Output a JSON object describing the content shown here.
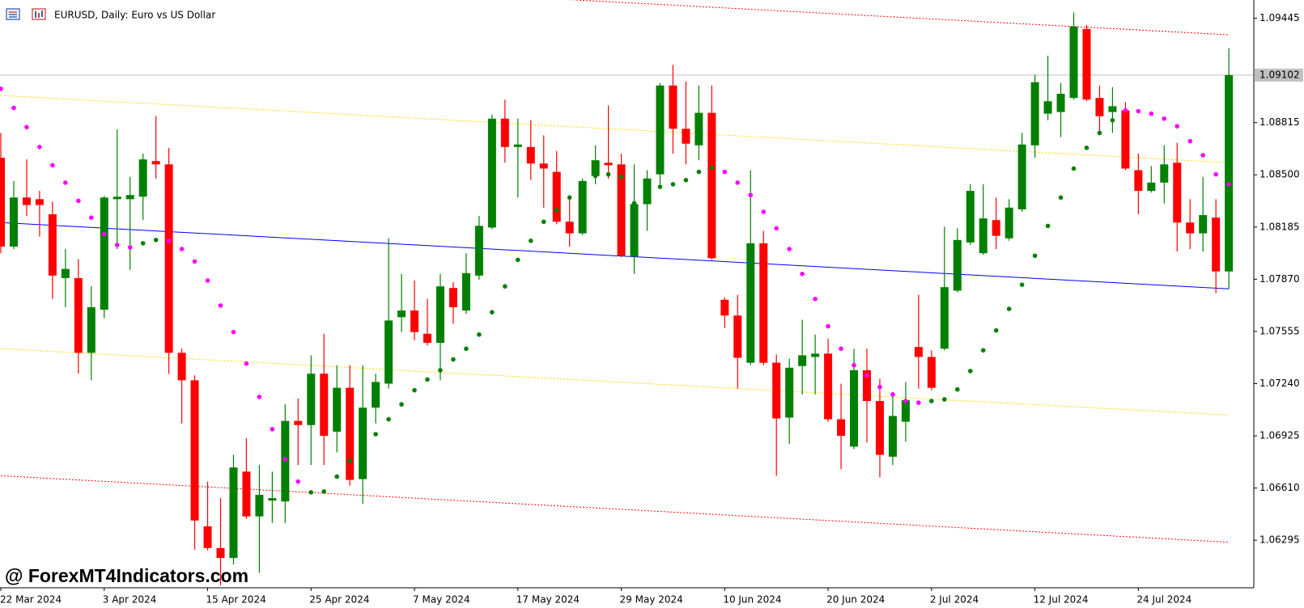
{
  "chart_data": {
    "type": "candlestick",
    "title": "EURUSD, Daily:  Euro vs US Dollar",
    "watermark": "@ ForexMT4Indicators.com",
    "up_color": "#008000",
    "down_color": "#ff0000",
    "ylim": [
      1.06008,
      1.09555
    ],
    "yticks": [
      1.06295,
      {
        "value": 1.0661,
        "label": "1.06610"
      },
      1.06925,
      {
        "value": 1.0724,
        "label": "1.07240"
      },
      1.07555,
      {
        "value": 1.0787,
        "label": "1.07870"
      },
      1.08185,
      {
        "value": 1.085,
        "label": "1.08500"
      },
      1.08815,
      1.09445
    ],
    "current_price": 1.09102,
    "categories": [
      "22 Mar 2024",
      null,
      null,
      null,
      null,
      null,
      null,
      null,
      "3 Apr 2024",
      null,
      null,
      null,
      null,
      null,
      null,
      null,
      "15 Apr 2024",
      null,
      null,
      null,
      null,
      null,
      null,
      null,
      "25 Apr 2024",
      null,
      null,
      null,
      null,
      null,
      null,
      null,
      "7 May 2024",
      null,
      null,
      null,
      null,
      null,
      null,
      null,
      "17 May 2024",
      null,
      null,
      null,
      null,
      null,
      null,
      null,
      "29 May 2024",
      null,
      null,
      null,
      null,
      null,
      null,
      null,
      "10 Jun 2024",
      null,
      null,
      null,
      null,
      null,
      null,
      null,
      "20 Jun 2024",
      null,
      null,
      null,
      null,
      null,
      null,
      null,
      "2 Jul 2024",
      null,
      null,
      null,
      null,
      null,
      null,
      null,
      "12 Jul 2024",
      null,
      null,
      null,
      null,
      null,
      null,
      null,
      "24 Jul 2024",
      null,
      null,
      null,
      null,
      null,
      null,
      null
    ],
    "ohlc": [
      [
        1.08603,
        1.08753,
        1.08027,
        1.08067
      ],
      [
        1.08067,
        1.08463,
        1.08052,
        1.08363
      ],
      [
        1.08363,
        1.08593,
        1.08252,
        1.08318
      ],
      [
        1.08353,
        1.08403,
        1.08127,
        1.08318
      ],
      [
        1.08262,
        1.08338,
        1.07751,
        1.07892
      ],
      [
        1.07877,
        1.08052,
        1.07701,
        1.07932
      ],
      [
        1.07877,
        1.07992,
        1.073,
        1.07426
      ],
      [
        1.07426,
        1.07827,
        1.0726,
        1.07701
      ],
      [
        1.07686,
        1.08373,
        1.07636,
        1.08363
      ],
      [
        1.08353,
        1.08773,
        1.08052,
        1.08368
      ],
      [
        1.08353,
        1.08488,
        1.07927,
        1.08378
      ],
      [
        1.08368,
        1.08628,
        1.08227,
        1.08593
      ],
      [
        1.08583,
        1.08854,
        1.08478,
        1.08563
      ],
      [
        1.08563,
        1.08663,
        1.073,
        1.07426
      ],
      [
        1.07426,
        1.07451,
        1.07,
        1.0726
      ],
      [
        1.0726,
        1.0729,
        1.06238,
        1.06414
      ],
      [
        1.06379,
        1.06649,
        1.06233,
        1.06248
      ],
      [
        1.06248,
        1.06549,
        1.06023,
        1.06188
      ],
      [
        1.06188,
        1.0681,
        1.06148,
        1.06734
      ],
      [
        1.06709,
        1.0691,
        1.06424,
        1.06439
      ],
      [
        1.06439,
        1.06749,
        1.06098,
        1.06569
      ],
      [
        1.06534,
        1.06709,
        1.06399,
        1.06549
      ],
      [
        1.06529,
        1.07115,
        1.06399,
        1.07015
      ],
      [
        1.07015,
        1.0715,
        1.06749,
        1.0699
      ],
      [
        1.0699,
        1.07411,
        1.06749,
        1.073
      ],
      [
        1.073,
        1.07541,
        1.06749,
        1.06925
      ],
      [
        1.0695,
        1.07351,
        1.06825,
        1.07215
      ],
      [
        1.07215,
        1.07351,
        1.06624,
        1.06659
      ],
      [
        1.06664,
        1.07351,
        1.06514,
        1.07095
      ],
      [
        1.07095,
        1.073,
        1.07,
        1.0725
      ],
      [
        1.0724,
        1.08117,
        1.0721,
        1.07621
      ],
      [
        1.07641,
        1.07902,
        1.07551,
        1.07681
      ],
      [
        1.07681,
        1.07862,
        1.07501,
        1.07551
      ],
      [
        1.07541,
        1.07751,
        1.07471,
        1.07486
      ],
      [
        1.07486,
        1.07902,
        1.0726,
        1.07827
      ],
      [
        1.07817,
        1.07852,
        1.07601,
        1.07701
      ],
      [
        1.07681,
        1.08027,
        1.07661,
        1.07907
      ],
      [
        1.07892,
        1.08252,
        1.07867,
        1.08192
      ],
      [
        1.08182,
        1.08864,
        1.08172,
        1.08839
      ],
      [
        1.08839,
        1.08954,
        1.08573,
        1.08668
      ],
      [
        1.08668,
        1.08839,
        1.08363,
        1.08683
      ],
      [
        1.08668,
        1.08829,
        1.08468,
        1.08568
      ],
      [
        1.08568,
        1.08738,
        1.08302,
        1.08538
      ],
      [
        1.08518,
        1.08643,
        1.08202,
        1.08217
      ],
      [
        1.08217,
        1.08368,
        1.08067,
        1.08147
      ],
      [
        1.08147,
        1.08478,
        1.08137,
        1.08463
      ],
      [
        1.08493,
        1.08678,
        1.08443,
        1.08588
      ],
      [
        1.08573,
        1.08919,
        1.08478,
        1.08558
      ],
      [
        1.08563,
        1.08628,
        1.08002,
        1.08012
      ],
      [
        1.08007,
        1.08563,
        1.07902,
        1.08323
      ],
      [
        1.08323,
        1.08528,
        1.08162,
        1.08478
      ],
      [
        1.08503,
        1.09054,
        1.08443,
        1.09039
      ],
      [
        1.09039,
        1.09164,
        1.08628,
        1.08778
      ],
      [
        1.08778,
        1.09064,
        1.08563,
        1.08688
      ],
      [
        1.08678,
        1.09039,
        1.08588,
        1.08874
      ],
      [
        1.08874,
        1.09039,
        1.07987,
        1.07997
      ],
      [
        1.07746,
        1.07761,
        1.07576,
        1.07651
      ],
      [
        1.07651,
        1.07776,
        1.0721,
        1.07396
      ],
      [
        1.07366,
        1.08528,
        1.07351,
        1.08087
      ],
      [
        1.08087,
        1.08162,
        1.07351,
        1.07366
      ],
      [
        1.07366,
        1.07416,
        1.06684,
        1.0703
      ],
      [
        1.07035,
        1.07391,
        1.06875,
        1.07336
      ],
      [
        1.07346,
        1.07626,
        1.07175,
        1.07411
      ],
      [
        1.07401,
        1.07536,
        1.07175,
        1.07421
      ],
      [
        1.07421,
        1.07511,
        1.0701,
        1.07025
      ],
      [
        1.07025,
        1.0724,
        1.06724,
        1.06925
      ],
      [
        1.0686,
        1.07451,
        1.06845,
        1.07321
      ],
      [
        1.07321,
        1.07451,
        1.06885,
        1.07135
      ],
      [
        1.07135,
        1.0727,
        1.06674,
        1.0681
      ],
      [
        1.06799,
        1.07175,
        1.06749,
        1.07045
      ],
      [
        1.0701,
        1.0725,
        1.0689,
        1.0714
      ],
      [
        1.07461,
        1.07776,
        1.0721,
        1.07401
      ],
      [
        1.07401,
        1.07441,
        1.072,
        1.07215
      ],
      [
        1.07451,
        1.08187,
        1.07441,
        1.07822
      ],
      [
        1.07801,
        1.08177,
        1.07791,
        1.08107
      ],
      [
        1.08092,
        1.08443,
        1.08077,
        1.08403
      ],
      [
        1.08027,
        1.08443,
        1.08017,
        1.08237
      ],
      [
        1.08227,
        1.08363,
        1.08052,
        1.08132
      ],
      [
        1.08117,
        1.08353,
        1.08102,
        1.08302
      ],
      [
        1.08292,
        1.08753,
        1.08277,
        1.08683
      ],
      [
        1.08678,
        1.09104,
        1.08603,
        1.09059
      ],
      [
        1.08869,
        1.09219,
        1.08829,
        1.08944
      ],
      [
        1.08879,
        1.09054,
        1.08728,
        1.08989
      ],
      [
        1.08964,
        1.0948,
        1.08954,
        1.09395
      ],
      [
        1.0938,
        1.09405,
        1.08944,
        1.08954
      ],
      [
        1.08964,
        1.09039,
        1.08738,
        1.08854
      ],
      [
        1.08879,
        1.09029,
        1.08753,
        1.08914
      ],
      [
        1.08889,
        1.08939,
        1.08528,
        1.08538
      ],
      [
        1.08528,
        1.08628,
        1.08262,
        1.08403
      ],
      [
        1.08403,
        1.08553,
        1.08393,
        1.08453
      ],
      [
        1.08453,
        1.08678,
        1.08328,
        1.08563
      ],
      [
        1.08573,
        1.08693,
        1.08037,
        1.08212
      ],
      [
        1.08212,
        1.08353,
        1.08052,
        1.08147
      ],
      [
        1.08147,
        1.08488,
        1.08037,
        1.08257
      ],
      [
        1.08242,
        1.08353,
        1.07786,
        1.07917
      ],
      [
        1.07917,
        1.09264,
        1.07812,
        1.09102
      ]
    ],
    "sar": [
      {
        "color": "#008000",
        "values": [
          null,
          null,
          null,
          null,
          null,
          null,
          null,
          null,
          null,
          null,
          null,
          1.08087,
          1.08107,
          null,
          null,
          null,
          null,
          null,
          null,
          null,
          null,
          null,
          null,
          null,
          1.06584,
          1.06589,
          1.06679,
          1.06774,
          1.0685,
          1.06935,
          1.07025,
          1.07115,
          1.072,
          1.07265,
          1.07321,
          1.07386,
          1.07451,
          1.07536,
          1.07671,
          1.07827,
          1.07987,
          1.08102,
          1.08217,
          1.08287,
          1.08363,
          1.08428,
          1.08493,
          1.08503,
          1.08488,
          1.08328,
          1.08413,
          1.08428,
          1.08443,
          1.08468,
          1.08518,
          1.08543,
          null,
          null,
          null,
          null,
          null,
          null,
          null,
          null,
          null,
          null,
          null,
          null,
          null,
          null,
          null,
          null,
          1.07135,
          1.07145,
          1.07205,
          1.07316,
          1.07441,
          1.07561,
          1.07691,
          1.07837,
          1.08012,
          1.08192,
          1.08363,
          1.08538,
          1.08663,
          1.08753,
          1.08829,
          null,
          null,
          null,
          null,
          null,
          null,
          null,
          null,
          null
        ]
      },
      {
        "color": "#ff00ff",
        "values": [
          1.09019,
          1.08904,
          1.08788,
          1.08668,
          1.08558,
          1.08453,
          1.08343,
          1.08242,
          1.08142,
          1.08077,
          1.08062,
          null,
          null,
          1.08102,
          1.08052,
          1.07977,
          1.07862,
          1.07711,
          1.07551,
          1.07361,
          1.0716,
          1.06965,
          1.06784,
          1.06649,
          null,
          null,
          null,
          null,
          null,
          null,
          null,
          null,
          null,
          null,
          null,
          null,
          null,
          null,
          null,
          null,
          null,
          null,
          null,
          null,
          null,
          null,
          null,
          null,
          null,
          null,
          null,
          null,
          null,
          null,
          null,
          null,
          1.08518,
          1.08453,
          1.08378,
          1.08277,
          1.08177,
          1.08052,
          1.07902,
          1.07751,
          1.07586,
          1.07451,
          1.07351,
          1.0729,
          1.0722,
          1.07175,
          1.07135,
          1.07125,
          null,
          null,
          null,
          null,
          null,
          null,
          null,
          null,
          null,
          null,
          null,
          null,
          null,
          null,
          null,
          1.08889,
          1.08884,
          1.08869,
          1.08839,
          1.08793,
          1.08703,
          1.08618,
          1.08503,
          1.08443
        ]
      }
    ],
    "channel": [
      {
        "color": "#0000ff",
        "dash": false,
        "values": [
          1.08212,
          1.07812
        ]
      },
      {
        "color": "#ffd700",
        "dash": true,
        "values": [
          1.08979,
          1.08573
        ]
      },
      {
        "color": "#ffd700",
        "dash": true,
        "values": [
          1.07451,
          1.0705
        ]
      },
      {
        "color": "#ff0000",
        "dash": true,
        "values": [
          1.0974,
          1.09345
        ]
      },
      {
        "color": "#ff0000",
        "dash": true,
        "values": [
          1.06684,
          1.06283
        ]
      }
    ]
  }
}
